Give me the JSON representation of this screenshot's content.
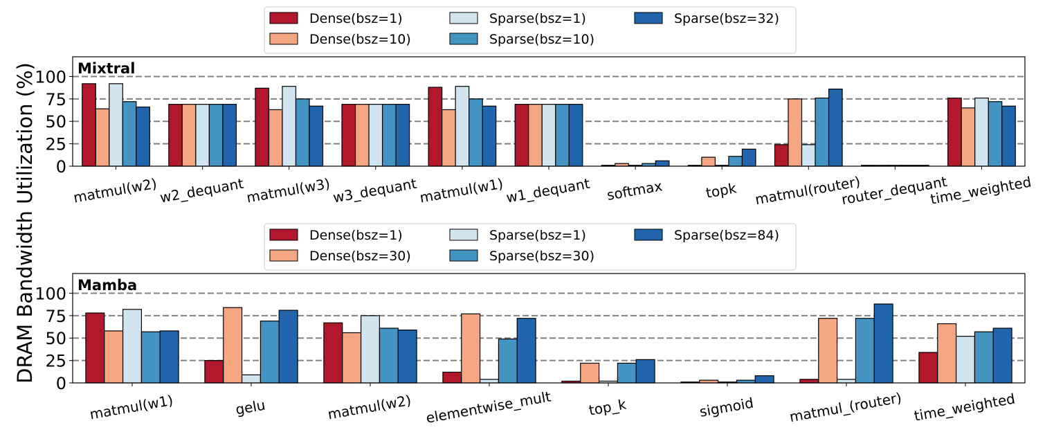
{
  "ylabel": "DRAM Bandwidth Utilization (%)",
  "colors": [
    "#b2182b",
    "#f4a582",
    "#d1e5f0",
    "#4393c3",
    "#2166ac"
  ],
  "chart_data": [
    {
      "type": "bar",
      "title": "Mixtral",
      "ylim": [
        0,
        100
      ],
      "yticks": [
        0,
        25,
        50,
        75,
        100
      ],
      "dashed_lines": [
        25,
        50,
        75,
        100
      ],
      "legend_placement": "top-center",
      "categories": [
        "matmul(w2)",
        "w2_dequant",
        "matmul(w3)",
        "w3_dequant",
        "matmul(w1)",
        "w1_dequant",
        "softmax",
        "topk",
        "matmul(router)",
        "router_dequant",
        "time_weighted"
      ],
      "series": [
        {
          "name": "Dense(bsz=1)",
          "values": [
            92,
            69,
            87,
            69,
            88,
            69,
            1,
            1,
            24,
            1,
            76
          ]
        },
        {
          "name": "Dense(bsz=10)",
          "values": [
            64,
            69,
            63,
            69,
            63,
            69,
            3,
            10,
            75,
            1,
            65
          ]
        },
        {
          "name": "Sparse(bsz=1)",
          "values": [
            92,
            69,
            89,
            69,
            89,
            69,
            1,
            1,
            24,
            1,
            76
          ]
        },
        {
          "name": "Sparse(bsz=10)",
          "values": [
            72,
            69,
            75,
            69,
            75,
            69,
            3,
            11,
            76,
            1,
            72
          ]
        },
        {
          "name": "Sparse(bsz=32)",
          "values": [
            66,
            69,
            67,
            69,
            67,
            69,
            6,
            19,
            86,
            1,
            67
          ]
        }
      ]
    },
    {
      "type": "bar",
      "title": "Mamba",
      "ylim": [
        0,
        100
      ],
      "yticks": [
        0,
        25,
        50,
        75,
        100
      ],
      "dashed_lines": [
        25,
        50,
        75,
        100
      ],
      "legend_placement": "top-center",
      "categories": [
        "matmul(w1)",
        "gelu",
        "matmul(w2)",
        "elementwise_mult",
        "top_k",
        "sigmoid",
        "matmul_(router)",
        "time_weighted"
      ],
      "series": [
        {
          "name": "Dense(bsz=1)",
          "values": [
            78,
            25,
            67,
            12,
            2,
            1,
            4,
            34
          ]
        },
        {
          "name": "Dense(bsz=30)",
          "values": [
            58,
            84,
            56,
            77,
            22,
            3,
            72,
            66
          ]
        },
        {
          "name": "Sparse(bsz=1)",
          "values": [
            82,
            9,
            75,
            4,
            2,
            1,
            4,
            52
          ]
        },
        {
          "name": "Sparse(bsz=30)",
          "values": [
            57,
            69,
            61,
            49,
            22,
            3,
            72,
            57
          ]
        },
        {
          "name": "Sparse(bsz=84)",
          "values": [
            58,
            81,
            59,
            72,
            26,
            8,
            88,
            61
          ]
        }
      ]
    }
  ]
}
